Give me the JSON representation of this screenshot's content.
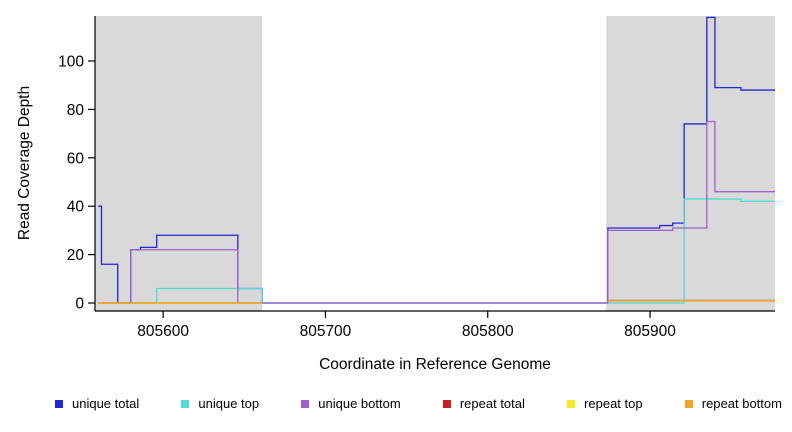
{
  "figure": {
    "background": "#ffffff",
    "shading_color": "#d9d9d9",
    "axis_color": "#000000",
    "xlabel": "Coordinate in Reference Genome",
    "ylabel": "Read Coverage Depth"
  },
  "legend": {
    "items": [
      {
        "label": "unique total",
        "color": "#2525d4"
      },
      {
        "label": "unique top",
        "color": "#4fdcd2"
      },
      {
        "label": "unique bottom",
        "color": "#9d5fd3"
      },
      {
        "label": "repeat total",
        "color": "#cc1f1f"
      },
      {
        "label": "repeat top",
        "color": "#f2ef1d"
      },
      {
        "label": "repeat bottom",
        "color": "#f5a61e"
      }
    ]
  },
  "chart_data": {
    "type": "line",
    "step": "after",
    "title": "",
    "xlabel": "Coordinate in Reference Genome",
    "ylabel": "Read Coverage Depth",
    "xlim": [
      805558,
      805977
    ],
    "ylim": [
      0,
      120
    ],
    "xticks": [
      805600,
      805700,
      805800,
      805900
    ],
    "yticks": [
      0,
      20,
      40,
      60,
      80,
      100
    ],
    "grid": false,
    "legend_position": "bottom",
    "x_data_end": 805977,
    "shaded_regions": [
      {
        "x0": 805558,
        "x1": 805661,
        "label": "left shaded repeat region"
      },
      {
        "x0": 805873,
        "x1": 805977,
        "label": "right shaded repeat region"
      }
    ],
    "series": [
      {
        "name": "unique total",
        "color": "#2525d4",
        "points": [
          [
            805560,
            40
          ],
          [
            805562,
            16
          ],
          [
            805572,
            0
          ],
          [
            805580,
            22
          ],
          [
            805586,
            23
          ],
          [
            805596,
            28
          ],
          [
            805646,
            6
          ],
          [
            805661,
            0
          ],
          [
            805874,
            31
          ],
          [
            805906,
            32
          ],
          [
            805914,
            33
          ],
          [
            805921,
            74
          ],
          [
            805935,
            118
          ],
          [
            805940,
            89
          ],
          [
            805956,
            88
          ]
        ]
      },
      {
        "name": "unique top",
        "color": "#4fdcd2",
        "points": [
          [
            805560,
            0
          ],
          [
            805596,
            6
          ],
          [
            805661,
            0
          ],
          [
            805921,
            43
          ],
          [
            805956,
            42
          ]
        ]
      },
      {
        "name": "unique bottom",
        "color": "#9d5fd3",
        "points": [
          [
            805560,
            0
          ],
          [
            805580,
            22
          ],
          [
            805646,
            0
          ],
          [
            805874,
            30
          ],
          [
            805914,
            31
          ],
          [
            805935,
            75
          ],
          [
            805940,
            46
          ]
        ]
      },
      {
        "name": "repeat total",
        "color": "#cc1f1f",
        "points": [
          [
            805560,
            0
          ],
          [
            805661,
            null
          ],
          [
            805874,
            1
          ]
        ]
      },
      {
        "name": "repeat top",
        "color": "#f2ef1d",
        "points": [
          [
            805560,
            0
          ],
          [
            805661,
            null
          ]
        ]
      },
      {
        "name": "repeat bottom",
        "color": "#f5a61e",
        "points": [
          [
            805560,
            0
          ],
          [
            805661,
            null
          ],
          [
            805874,
            1
          ]
        ]
      }
    ]
  }
}
